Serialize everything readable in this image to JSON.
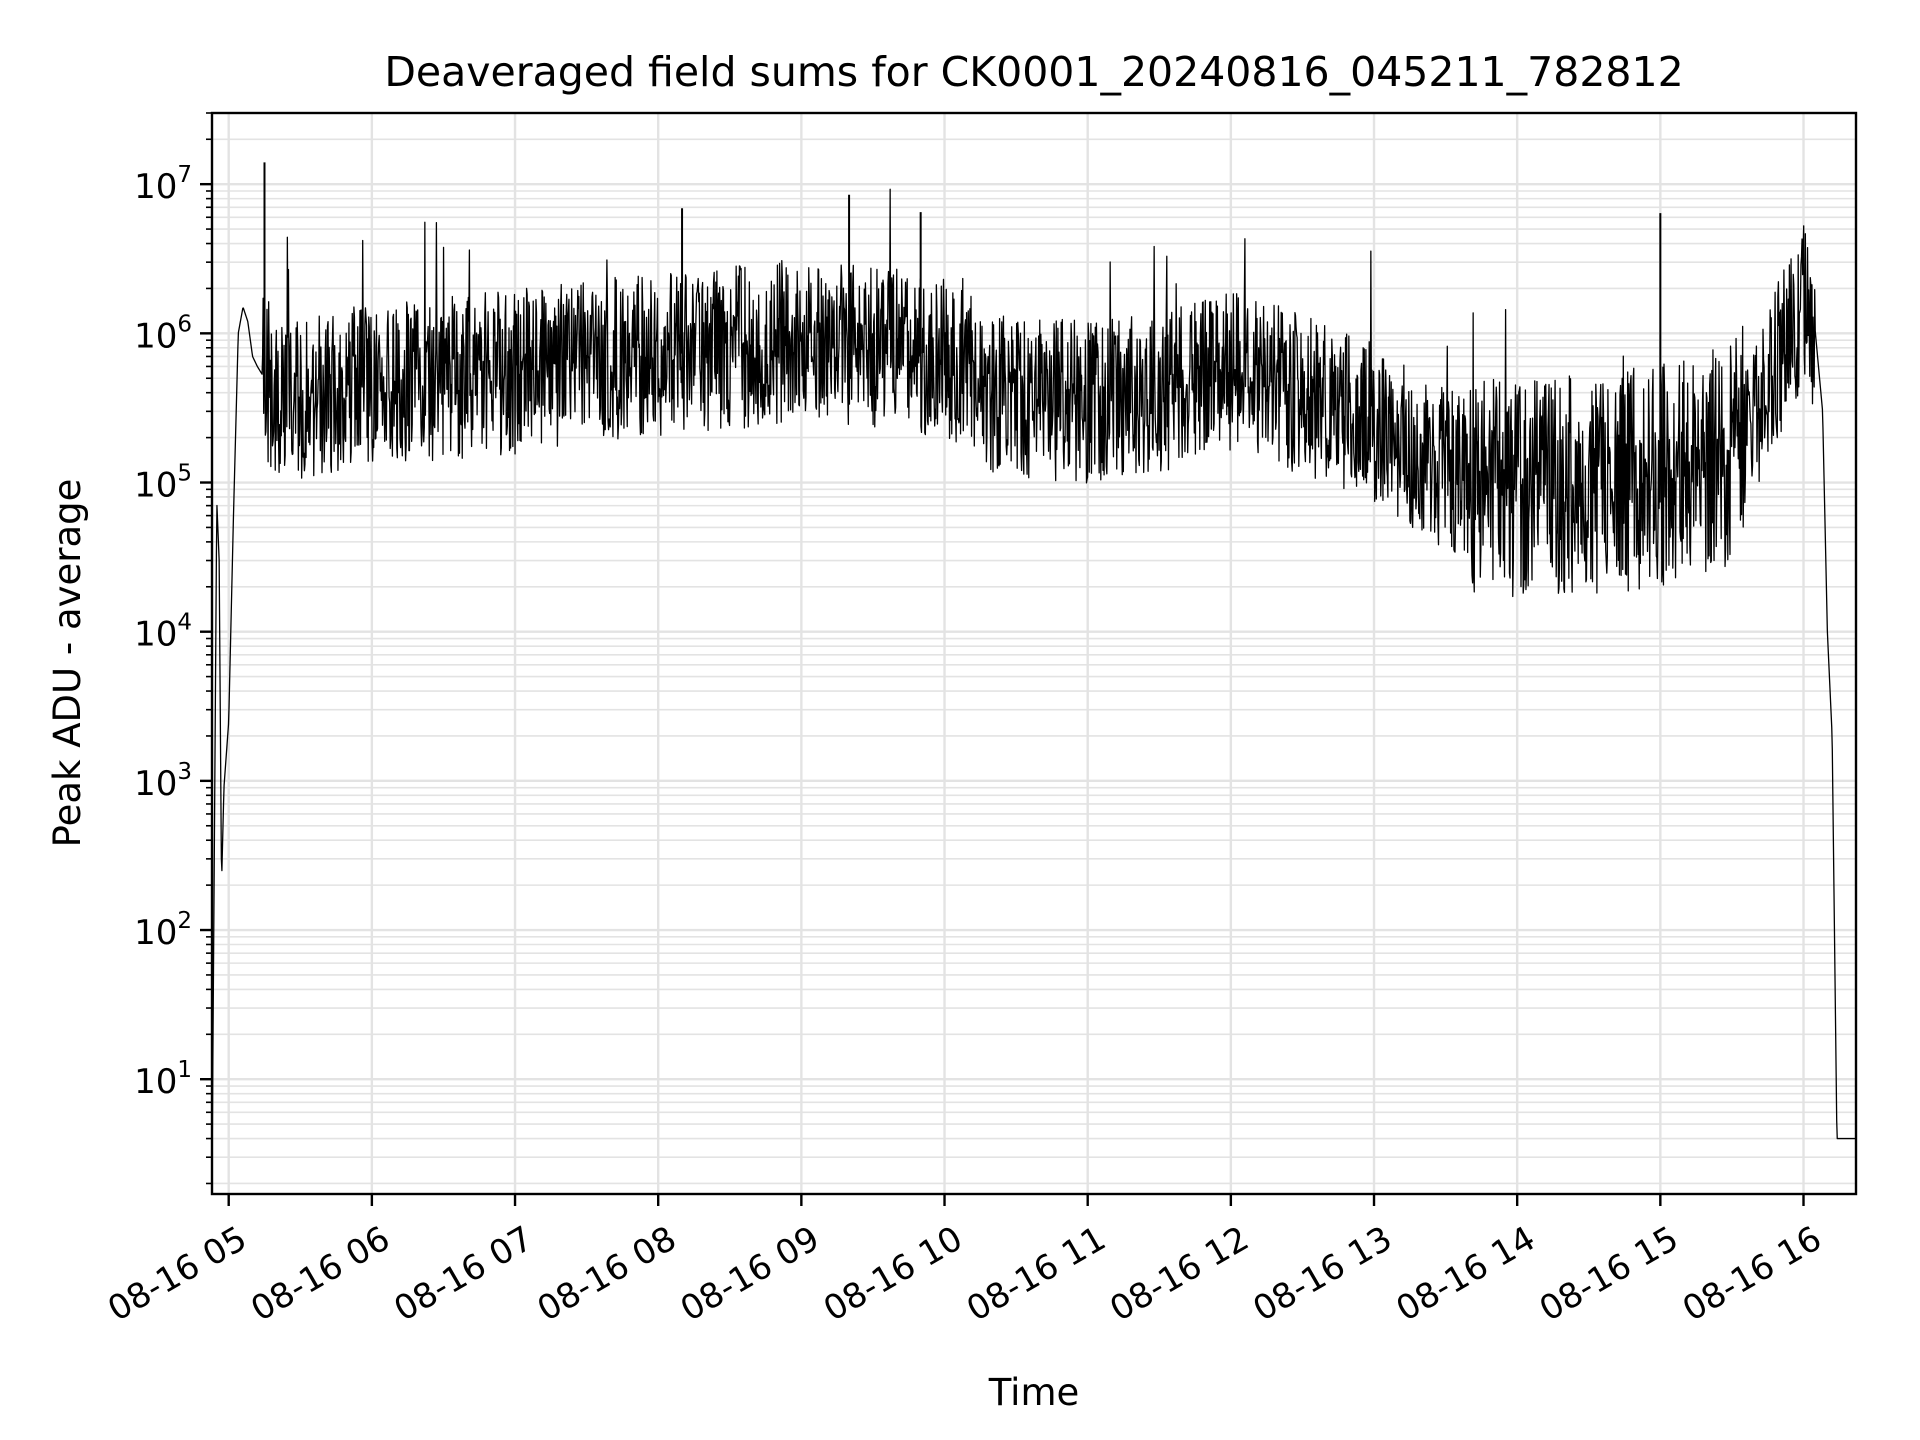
{
  "chart_data": {
    "type": "line",
    "title": "Deaveraged field sums for CK0001_20240816_045211_782812",
    "xlabel": "Time",
    "ylabel": "Peak ADU - average",
    "y_scale": "log",
    "grid": true,
    "legend": "none",
    "colors": {
      "line": "#000000",
      "grid": "#e3e3e3",
      "axes": "#000000"
    },
    "xlim": [
      "2024-08-16 04:53",
      "2024-08-16 16:22"
    ],
    "ylim": [
      1.7,
      30000000
    ],
    "x_ticks": [
      {
        "value": "2024-08-16 05:00",
        "label": "08-16 05"
      },
      {
        "value": "2024-08-16 06:00",
        "label": "08-16 06"
      },
      {
        "value": "2024-08-16 07:00",
        "label": "08-16 07"
      },
      {
        "value": "2024-08-16 08:00",
        "label": "08-16 08"
      },
      {
        "value": "2024-08-16 09:00",
        "label": "08-16 09"
      },
      {
        "value": "2024-08-16 10:00",
        "label": "08-16 10"
      },
      {
        "value": "2024-08-16 11:00",
        "label": "08-16 11"
      },
      {
        "value": "2024-08-16 12:00",
        "label": "08-16 12"
      },
      {
        "value": "2024-08-16 13:00",
        "label": "08-16 13"
      },
      {
        "value": "2024-08-16 14:00",
        "label": "08-16 14"
      },
      {
        "value": "2024-08-16 15:00",
        "label": "08-16 15"
      },
      {
        "value": "2024-08-16 16:00",
        "label": "08-16 16"
      }
    ],
    "y_ticks": [
      {
        "value": 10,
        "base": "10",
        "exp": "1"
      },
      {
        "value": 100,
        "base": "10",
        "exp": "2"
      },
      {
        "value": 1000,
        "base": "10",
        "exp": "3"
      },
      {
        "value": 10000,
        "base": "10",
        "exp": "4"
      },
      {
        "value": 100000,
        "base": "10",
        "exp": "5"
      },
      {
        "value": 1000000,
        "base": "10",
        "exp": "6"
      },
      {
        "value": 10000000,
        "base": "10",
        "exp": "7"
      }
    ],
    "series": [
      {
        "x": [
          "2024-08-16 04:53",
          "2024-08-16 04:55",
          "2024-08-16 04:56",
          "2024-08-16 04:57",
          "2024-08-16 04:58",
          "2024-08-16 05:00",
          "2024-08-16 05:02",
          "2024-08-16 05:04",
          "2024-08-16 05:06",
          "2024-08-16 05:08",
          "2024-08-16 05:10",
          "2024-08-16 05:12",
          "2024-08-16 05:15",
          "2024-08-16 05:20",
          "2024-08-16 05:30",
          "2024-08-16 05:45",
          "2024-08-16 06:00",
          "2024-08-16 06:30",
          "2024-08-16 07:00",
          "2024-08-16 07:30",
          "2024-08-16 08:00",
          "2024-08-16 08:30",
          "2024-08-16 09:00",
          "2024-08-16 09:30",
          "2024-08-16 10:00",
          "2024-08-16 10:15",
          "2024-08-16 10:30",
          "2024-08-16 11:00",
          "2024-08-16 11:30",
          "2024-08-16 12:00",
          "2024-08-16 12:30",
          "2024-08-16 13:00",
          "2024-08-16 13:20",
          "2024-08-16 13:40",
          "2024-08-16 14:00",
          "2024-08-16 14:30",
          "2024-08-16 15:00",
          "2024-08-16 15:30",
          "2024-08-16 15:50",
          "2024-08-16 16:00",
          "2024-08-16 16:05",
          "2024-08-16 16:08",
          "2024-08-16 16:10",
          "2024-08-16 16:12",
          "2024-08-16 16:14",
          "2024-08-16 16:22"
        ],
        "y": [
          2,
          75000,
          30000,
          200,
          900,
          2500,
          60000,
          1000000,
          1500000,
          1200000,
          700000,
          600000,
          500000,
          400000,
          350000,
          400000,
          450000,
          500000,
          550000,
          650000,
          700000,
          800000,
          900000,
          800000,
          700000,
          450000,
          350000,
          350000,
          400000,
          550000,
          400000,
          250000,
          150000,
          100000,
          90000,
          100000,
          110000,
          150000,
          700000,
          1600000,
          1000000,
          300000,
          10000,
          2000,
          4,
          4
        ]
      }
    ],
    "spikes": [
      {
        "x": "2024-08-16 05:15",
        "y": 14000000
      },
      {
        "x": "2024-08-16 08:10",
        "y": 6900000
      },
      {
        "x": "2024-08-16 09:20",
        "y": 8500000
      },
      {
        "x": "2024-08-16 09:50",
        "y": 6500000
      },
      {
        "x": "2024-08-16 15:00",
        "y": 6400000
      }
    ]
  }
}
